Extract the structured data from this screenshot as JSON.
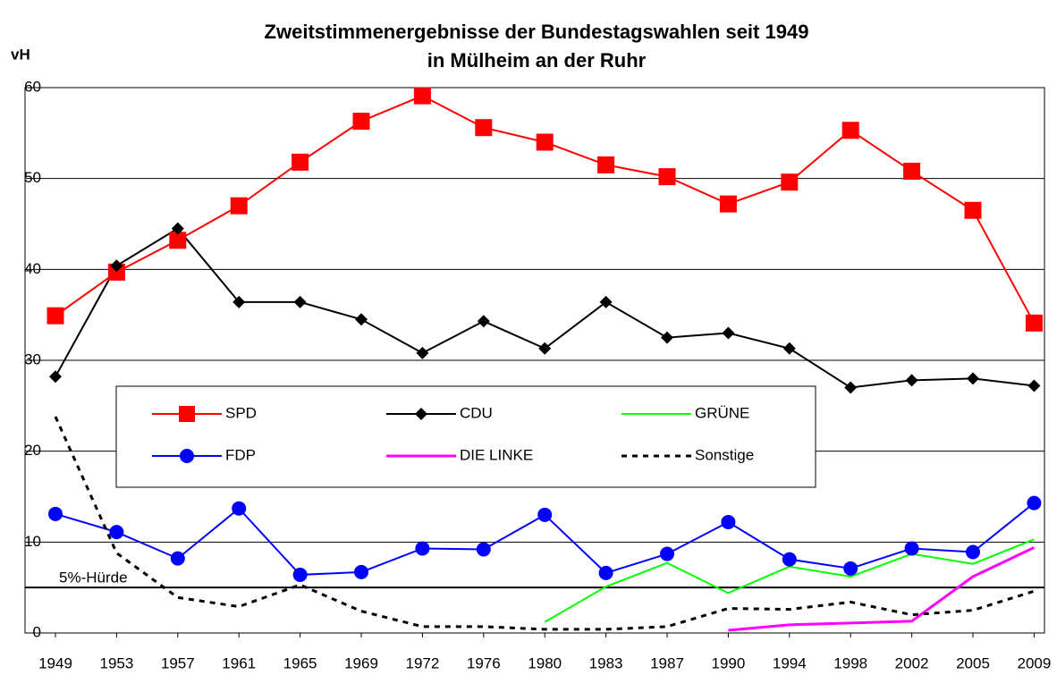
{
  "chart_data": {
    "type": "line",
    "title": [
      "Zweitstimmenergebnisse der Bundestagswahlen seit 1949",
      "in Mülheim an der Ruhr"
    ],
    "y_label": "vH",
    "categories": [
      "1949",
      "1953",
      "1957",
      "1961",
      "1965",
      "1969",
      "1972",
      "1976",
      "1980",
      "1983",
      "1987",
      "1990",
      "1994",
      "1998",
      "2002",
      "2005",
      "2009"
    ],
    "ylim": [
      0,
      60
    ],
    "yticks": [
      0,
      10,
      20,
      30,
      40,
      50,
      60
    ],
    "grid": true,
    "threshold": {
      "value": 5,
      "label": "5%-Hürde"
    },
    "series": [
      {
        "name": "SPD",
        "color": "#ff0000",
        "marker": "square",
        "values": [
          34.9,
          39.7,
          43.2,
          47.0,
          51.8,
          56.3,
          59.1,
          55.6,
          54.0,
          51.5,
          50.2,
          47.2,
          49.6,
          55.3,
          50.8,
          46.5,
          34.1
        ]
      },
      {
        "name": "CDU",
        "color": "#000000",
        "marker": "diamond",
        "values": [
          28.2,
          40.4,
          44.5,
          36.4,
          36.4,
          34.5,
          30.8,
          34.3,
          31.3,
          36.4,
          32.5,
          33.0,
          31.3,
          27.0,
          27.8,
          28.0,
          27.2
        ]
      },
      {
        "name": "GRÜNE",
        "color": "#00ff00",
        "values": [
          null,
          null,
          null,
          null,
          null,
          null,
          null,
          null,
          1.2,
          5.1,
          7.7,
          4.4,
          7.3,
          6.2,
          8.7,
          7.6,
          10.3
        ]
      },
      {
        "name": "FDP",
        "color": "#0000ff",
        "marker": "circle",
        "values": [
          13.1,
          11.1,
          8.2,
          13.7,
          6.4,
          6.7,
          9.3,
          9.2,
          13.0,
          6.6,
          8.7,
          12.2,
          8.1,
          7.1,
          9.3,
          8.9,
          14.3
        ]
      },
      {
        "name": "DIE LINKE",
        "color": "#ff00ff",
        "values": [
          null,
          null,
          null,
          null,
          null,
          null,
          null,
          null,
          null,
          null,
          null,
          0.3,
          0.9,
          1.1,
          1.3,
          6.2,
          9.4
        ]
      },
      {
        "name": "Sonstige",
        "color": "#000000",
        "dashed": true,
        "values": [
          23.8,
          8.8,
          3.9,
          2.9,
          5.3,
          2.4,
          0.7,
          0.7,
          0.4,
          0.4,
          0.7,
          2.7,
          2.6,
          3.4,
          2.0,
          2.5,
          4.6
        ]
      }
    ]
  }
}
